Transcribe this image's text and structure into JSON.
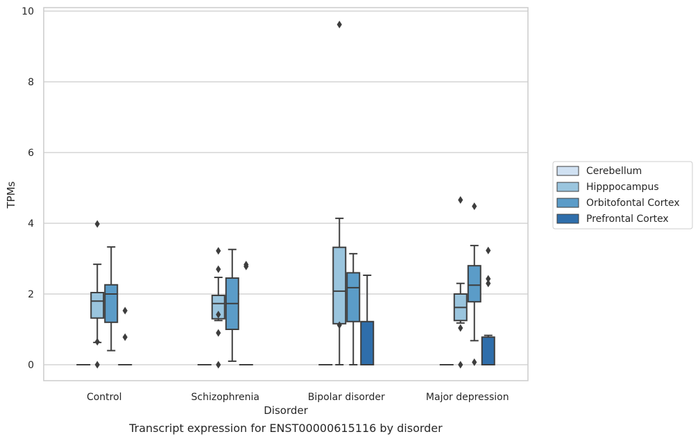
{
  "chart_data": {
    "type": "box",
    "title": "",
    "caption": "Transcript expression for ENST00000615116 by disorder",
    "xlabel": "Disorder",
    "ylabel": "TPMs",
    "ylim": [
      -0.45,
      10.1
    ],
    "yticks": [
      "0",
      "2",
      "4",
      "6",
      "8",
      "10"
    ],
    "grid": true,
    "legend_position": "right",
    "categories": [
      "Control",
      "Schizophrenia",
      "Bipolar disorder",
      "Major depression"
    ],
    "series": [
      {
        "name": "Cerebellum",
        "color": "#d0e1f2",
        "boxes": [
          {
            "q1": 0,
            "median": 0,
            "q3": 0,
            "whisker_low": 0,
            "whisker_high": 0,
            "outliers": []
          },
          {
            "q1": 0,
            "median": 0,
            "q3": 0,
            "whisker_low": 0,
            "whisker_high": 0,
            "outliers": []
          },
          {
            "q1": 0,
            "median": 0,
            "q3": 0,
            "whisker_low": 0,
            "whisker_high": 0,
            "outliers": []
          },
          {
            "q1": 0,
            "median": 0,
            "q3": 0,
            "whisker_low": 0,
            "whisker_high": 0,
            "outliers": []
          }
        ]
      },
      {
        "name": "Hipppocampus",
        "color": "#9ac5de",
        "boxes": [
          {
            "q1": 1.32,
            "median": 1.8,
            "q3": 2.04,
            "whisker_low": 0.63,
            "whisker_high": 2.84,
            "outliers": [
              0.65,
              0.0,
              3.98
            ]
          },
          {
            "q1": 1.3,
            "median": 1.73,
            "q3": 1.96,
            "whisker_low": 1.25,
            "whisker_high": 2.47,
            "outliers": [
              0.0,
              0.9,
              1.42,
              2.7,
              3.22
            ]
          },
          {
            "q1": 1.16,
            "median": 2.08,
            "q3": 3.32,
            "whisker_low": 0.0,
            "whisker_high": 4.14,
            "outliers": [
              1.12,
              9.62
            ]
          },
          {
            "q1": 1.25,
            "median": 1.62,
            "q3": 2.0,
            "whisker_low": 1.18,
            "whisker_high": 2.3,
            "outliers": [
              1.04,
              0.0,
              4.66
            ]
          }
        ]
      },
      {
        "name": "Orbitofontal Cortex",
        "color": "#5b9cc8",
        "boxes": [
          {
            "q1": 1.2,
            "median": 2.0,
            "q3": 2.26,
            "whisker_low": 0.4,
            "whisker_high": 3.33,
            "outliers": []
          },
          {
            "q1": 1.0,
            "median": 1.73,
            "q3": 2.45,
            "whisker_low": 0.1,
            "whisker_high": 3.26,
            "outliers": []
          },
          {
            "q1": 1.22,
            "median": 2.18,
            "q3": 2.6,
            "whisker_low": 0.0,
            "whisker_high": 3.14,
            "outliers": []
          },
          {
            "q1": 1.78,
            "median": 2.25,
            "q3": 2.8,
            "whisker_low": 0.68,
            "whisker_high": 3.37,
            "outliers": [
              0.07,
              4.48
            ]
          }
        ]
      },
      {
        "name": "Prefrontal Cortex",
        "color": "#2f6eab",
        "boxes": [
          {
            "q1": 0,
            "median": 0,
            "q3": 0,
            "whisker_low": 0,
            "whisker_high": 0,
            "outliers": [
              0.78,
              1.53
            ]
          },
          {
            "q1": 0,
            "median": 0,
            "q3": 0,
            "whisker_low": 0,
            "whisker_high": 0,
            "outliers": [
              2.78,
              2.83
            ]
          },
          {
            "q1": 0,
            "median": 0,
            "q3": 1.22,
            "whisker_low": 0,
            "whisker_high": 2.53,
            "outliers": []
          },
          {
            "q1": 0,
            "median": 0,
            "q3": 0.78,
            "whisker_low": 0,
            "whisker_high": 0.83,
            "outliers": [
              2.3,
              2.43,
              3.23
            ]
          }
        ]
      }
    ]
  }
}
